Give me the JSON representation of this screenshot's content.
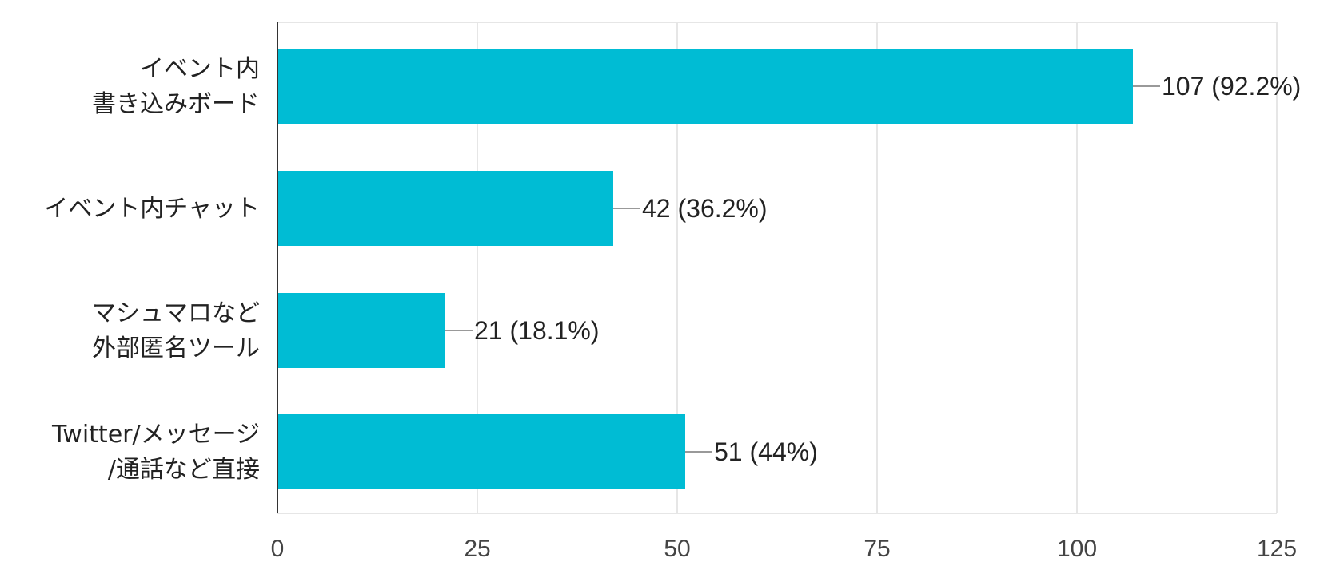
{
  "chart_data": {
    "type": "bar",
    "orientation": "horizontal",
    "categories": [
      [
        "イベント内",
        "書き込みボード"
      ],
      [
        "イベント内チャット"
      ],
      [
        "マシュマロなど",
        "外部匿名ツール"
      ],
      [
        "Twitter/メッセージ",
        "/通話など直接"
      ]
    ],
    "values": [
      107,
      42,
      21,
      51
    ],
    "data_labels": [
      "107 (92.2%)",
      "42 (36.2%)",
      "21 (18.1%)",
      "51 (44%)"
    ],
    "xlim": [
      0,
      125
    ],
    "xticks": [
      0,
      25,
      50,
      75,
      100,
      125
    ],
    "grid": true,
    "legend": "none",
    "bar_color": "#00BCD4",
    "grid_color": "#E6E6E6",
    "axis_color": "#333333",
    "leader_color": "#999999"
  }
}
